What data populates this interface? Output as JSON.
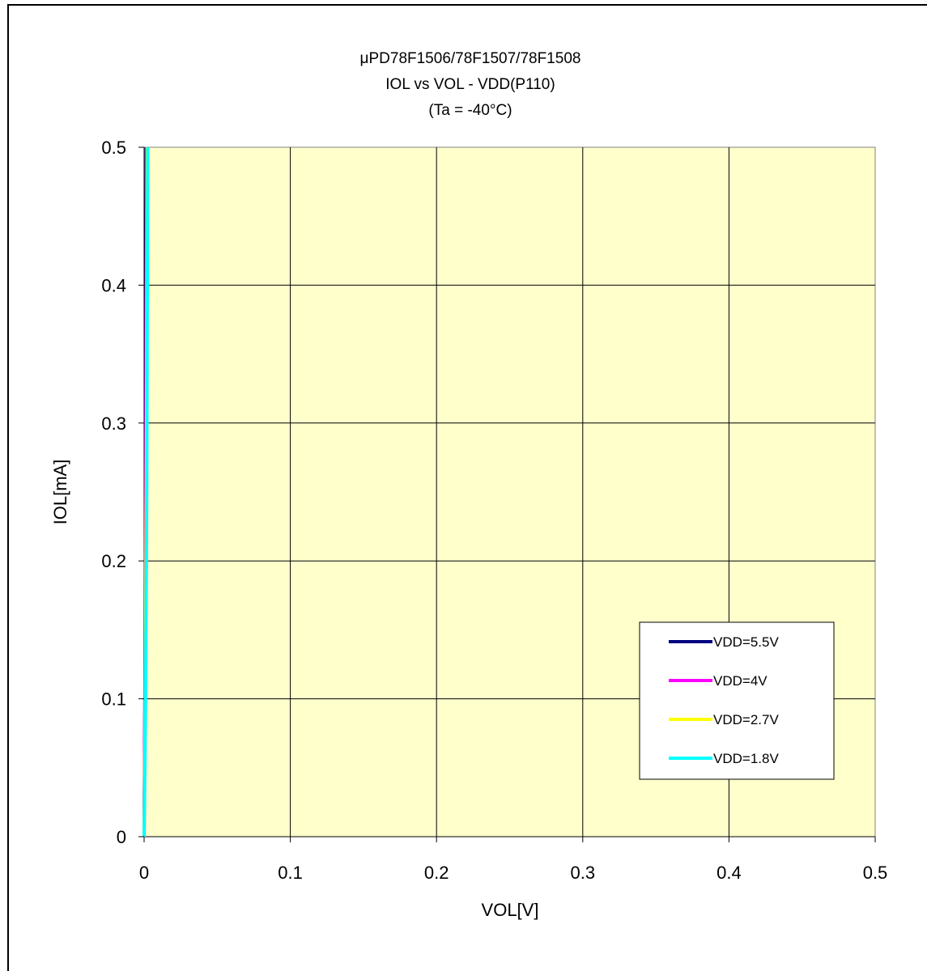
{
  "chart_data": {
    "type": "line",
    "title_lines": [
      "μPD78F1506/78F1507/78F1508",
      "IOL vs VOL  - VDD(P110)",
      "(Ta =  -40°C)"
    ],
    "xlabel": "VOL[V]",
    "ylabel": "IOL[mA]",
    "xlim": [
      0,
      0.5
    ],
    "ylim": [
      0,
      0.5
    ],
    "x_ticks": [
      "0",
      "0.1",
      "0.2",
      "0.3",
      "0.4",
      "0.5"
    ],
    "y_ticks": [
      "0",
      "0.1",
      "0.2",
      "0.3",
      "0.4",
      "0.5"
    ],
    "grid": true,
    "plot_background": "#ffffcc",
    "legend_position": "lower-right",
    "series": [
      {
        "name": "VDD=5.5V",
        "color": "#000080",
        "x": [
          0,
          0.0005,
          0.001,
          0.0015
        ],
        "y": [
          0,
          0.1,
          0.25,
          0.5
        ]
      },
      {
        "name": "VDD=4V",
        "color": "#ff00ff",
        "x": [
          0,
          0.0006,
          0.0012,
          0.0018
        ],
        "y": [
          0,
          0.1,
          0.25,
          0.5
        ]
      },
      {
        "name": "VDD=2.7V",
        "color": "#ffff00",
        "x": [
          0,
          0.0008,
          0.0015,
          0.0022
        ],
        "y": [
          0,
          0.1,
          0.25,
          0.5
        ]
      },
      {
        "name": "VDD=1.8V",
        "color": "#00ffff",
        "x": [
          0,
          0.001,
          0.0018,
          0.0025
        ],
        "y": [
          0,
          0.1,
          0.25,
          0.5
        ]
      }
    ]
  }
}
